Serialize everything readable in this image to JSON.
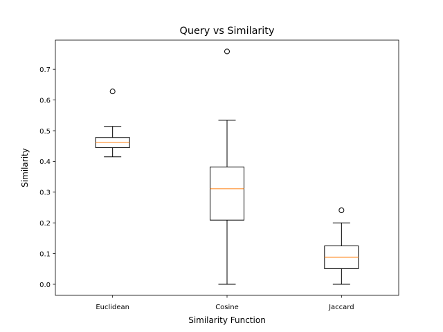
{
  "chart_data": {
    "type": "box",
    "title": "Query vs Similarity",
    "xlabel": "Similarity Function",
    "ylabel": "Similarity",
    "ylim": [
      -0.036,
      0.795
    ],
    "yticks": [
      0.0,
      0.1,
      0.2,
      0.3,
      0.4,
      0.5,
      0.6,
      0.7
    ],
    "ytick_labels": [
      "0.0",
      "0.1",
      "0.2",
      "0.3",
      "0.4",
      "0.5",
      "0.6",
      "0.7"
    ],
    "grid": false,
    "categories": [
      "Euclidean",
      "Cosine",
      "Jaccard"
    ],
    "boxes": [
      {
        "category": "Euclidean",
        "whisker_low": 0.415,
        "q1": 0.445,
        "median": 0.462,
        "q3": 0.478,
        "whisker_high": 0.514,
        "outliers": [
          0.628
        ]
      },
      {
        "category": "Cosine",
        "whisker_low": 0.0,
        "q1": 0.209,
        "median": 0.311,
        "q3": 0.382,
        "whisker_high": 0.534,
        "outliers": [
          0.758
        ]
      },
      {
        "category": "Jaccard",
        "whisker_low": 0.0,
        "q1": 0.051,
        "median": 0.088,
        "q3": 0.125,
        "whisker_high": 0.2,
        "outliers": [
          0.241
        ]
      }
    ],
    "colors": {
      "box": "#000000",
      "median": "#ff7f0e",
      "outlier_edge": "#000000"
    }
  }
}
